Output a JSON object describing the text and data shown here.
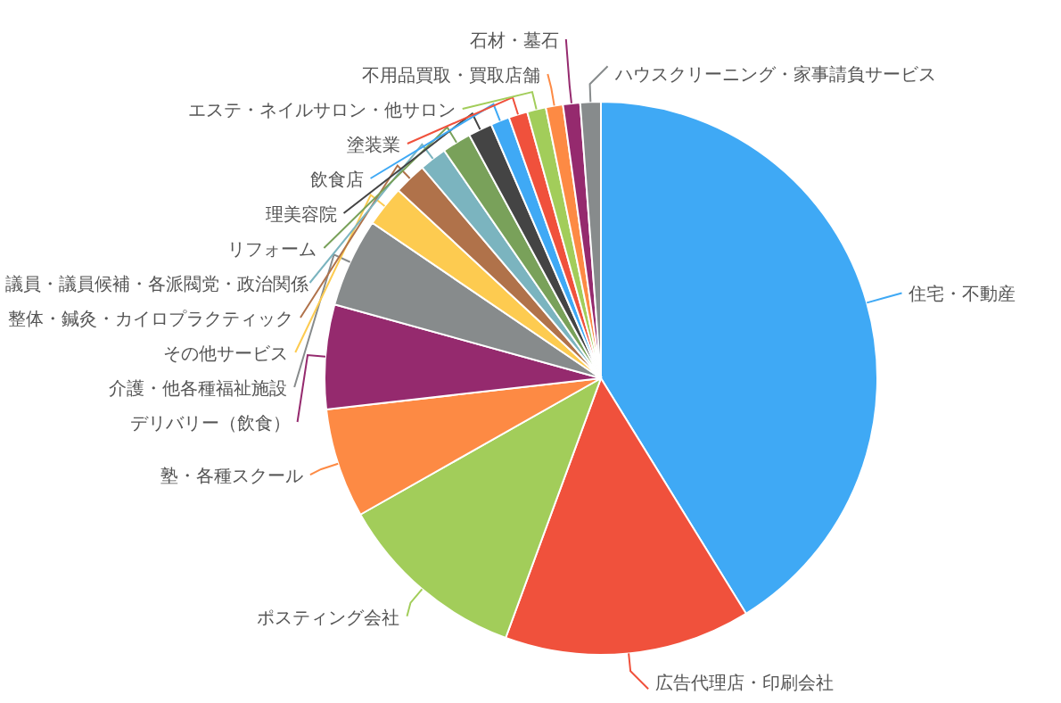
{
  "chart_data": {
    "type": "pie",
    "categories": [
      "住宅・不動産",
      "広告代理店・印刷会社",
      "ポスティング会社",
      "塾・各種スクール",
      "デリバリー（飲食）",
      "介護・他各種福祉施設",
      "その他サービス",
      "整体・鍼灸・カイロプラクティック",
      "議員・議員候補・各派閥党・政治関係",
      "リフォーム",
      "理美容院",
      "飲食店",
      "塗装業",
      "エステ・ネイルサロン・他サロン",
      "不用品買取・買取店舗",
      "石材・墓石",
      "ハウスクリーニング・家事請負サービス"
    ],
    "values": [
      41.2,
      14.4,
      11.2,
      6.4,
      6.1,
      5.2,
      2.4,
      1.9,
      1.6,
      1.7,
      1.4,
      1.1,
      1.1,
      1.1,
      1.0,
      1.0,
      1.2
    ],
    "colors": [
      "#3fa9f5",
      "#f0513c",
      "#a2cd5a",
      "#fd8a44",
      "#952a6e",
      "#878b8c",
      "#fdcb50",
      "#b0724a",
      "#7bb4bf",
      "#79a15a",
      "#444444",
      "#3fa9f5",
      "#f0513c",
      "#a2cd5a",
      "#fd8a44",
      "#952a6e",
      "#878b8c"
    ]
  }
}
